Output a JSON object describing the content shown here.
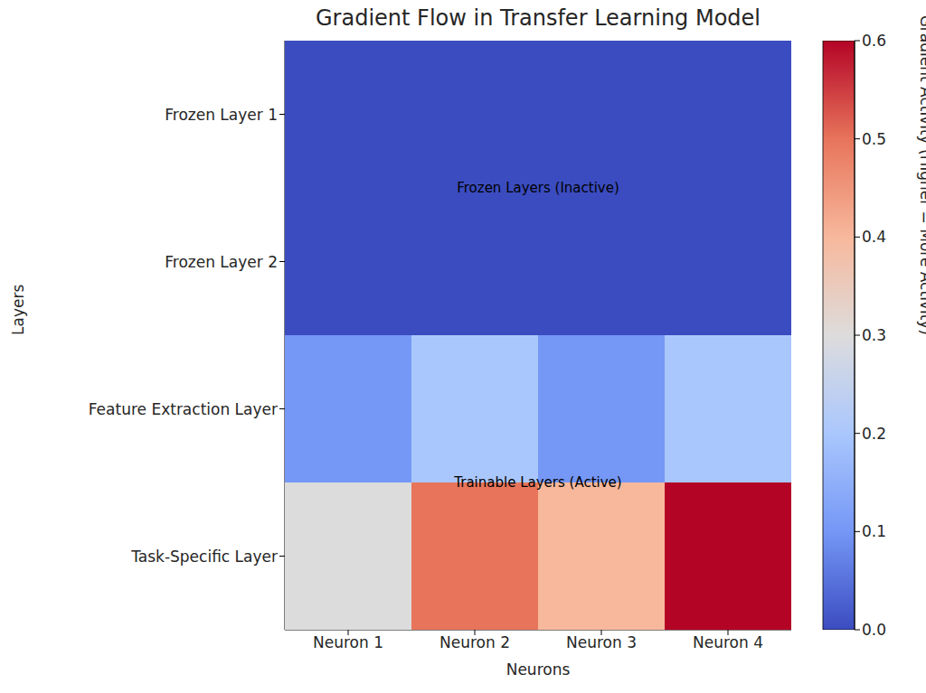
{
  "chart_data": {
    "type": "heatmap",
    "title": "Gradient Flow in Transfer Learning Model",
    "x_label": "Neurons",
    "y_label": "Layers",
    "columns": [
      "Neuron 1",
      "Neuron 2",
      "Neuron 3",
      "Neuron 4"
    ],
    "rows": [
      "Frozen Layer 1",
      "Frozen Layer 2",
      "Feature Extraction Layer",
      "Task-Specific Layer"
    ],
    "cells": [
      [
        0,
        0,
        0,
        0
      ],
      [
        0,
        0,
        0,
        0
      ],
      [
        0.1,
        0.2,
        0.1,
        0.2
      ],
      [
        0.3,
        0.5,
        0.4,
        0.6
      ]
    ],
    "annotations": [
      "Frozen Layers (Inactive)",
      "Trainable Layers (Active)"
    ],
    "grid": true,
    "colorbar": {
      "label": "Gradient Activity (Higher = More Activity)",
      "range": [
        0,
        0.6
      ],
      "ticks": [
        {
          "value": 0,
          "label": "0.0"
        },
        0.1,
        0.2,
        0.3,
        0.4,
        0.5,
        0.6
      ]
    }
  }
}
